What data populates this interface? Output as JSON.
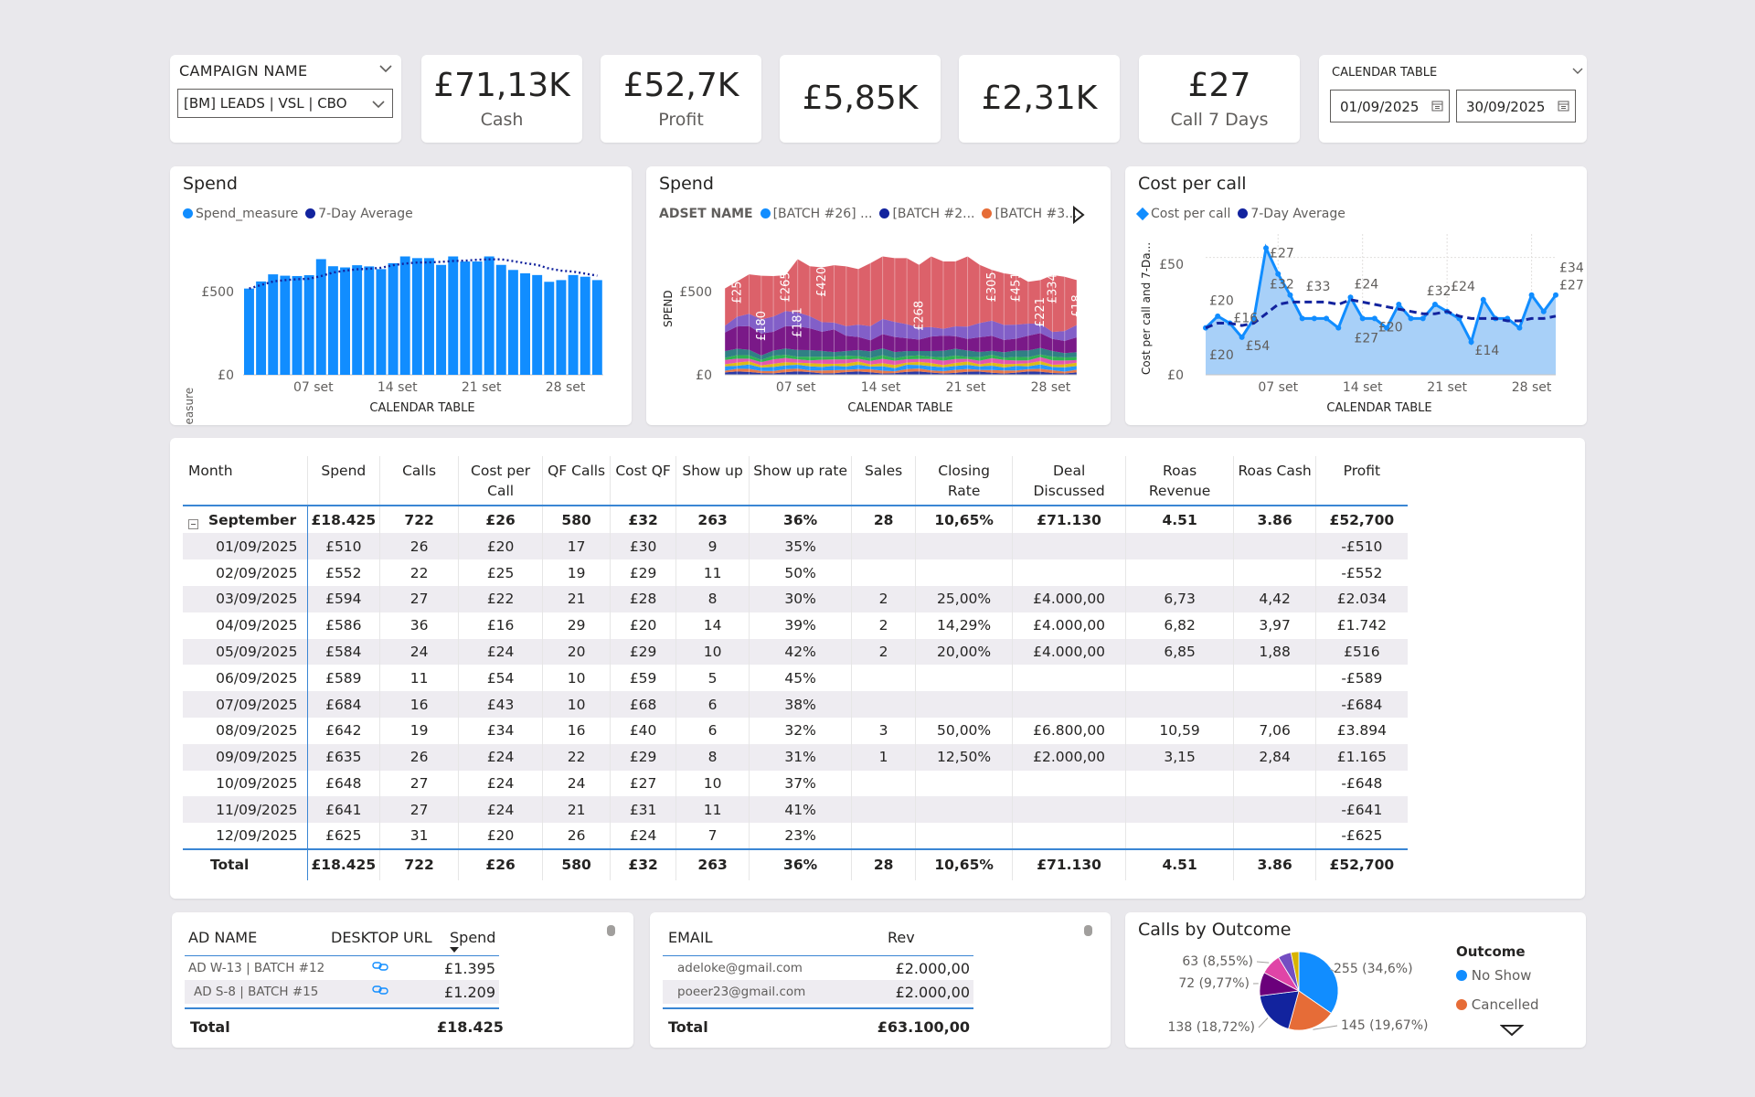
{
  "slicer_campaign": {
    "title": "CAMPAIGN NAME",
    "selected": "[BM] LEADS | VSL | CBO"
  },
  "kpis": [
    {
      "value": "£71,13K",
      "label": "Cash"
    },
    {
      "value": "£52,7K",
      "label": "Profit"
    },
    {
      "value": "£5,85K",
      "label": ""
    },
    {
      "value": "£2,31K",
      "label": ""
    },
    {
      "value": "£27",
      "label": "Call 7 Days"
    }
  ],
  "slicer_date": {
    "title": "CALENDAR TABLE",
    "start": "01/09/2025",
    "end": "30/09/2025"
  },
  "spend_chart": {
    "title": "Spend",
    "legend": [
      "Spend_measure",
      "7-Day Average"
    ],
    "colors": {
      "bar": "#118dff",
      "avg": "#12239e"
    },
    "chart_data": {
      "type": "bar",
      "title": "Spend",
      "xlabel": "CALENDAR TABLE",
      "ylabel": "Spend_measure",
      "ylim": [
        0,
        800
      ],
      "yticks": [
        "£0",
        "£500"
      ],
      "xticks": [
        "07 set",
        "14 set",
        "21 set",
        "28 set"
      ],
      "x": [
        1,
        2,
        3,
        4,
        5,
        6,
        7,
        8,
        9,
        10,
        11,
        12,
        13,
        14,
        15,
        16,
        17,
        18,
        19,
        20,
        21,
        22,
        23,
        24,
        25,
        26,
        27,
        28,
        29,
        30
      ],
      "series": [
        {
          "name": "Spend_measure",
          "values": [
            510,
            552,
            594,
            586,
            584,
            589,
            684,
            642,
            635,
            648,
            641,
            625,
            660,
            700,
            690,
            690,
            650,
            700,
            670,
            670,
            700,
            650,
            620,
            600,
            590,
            550,
            560,
            590,
            580,
            560
          ]
        },
        {
          "name": "7-Day Average",
          "values": [
            510,
            531,
            552,
            560,
            565,
            568,
            584,
            605,
            616,
            624,
            627,
            633,
            648,
            658,
            664,
            665,
            668,
            673,
            675,
            680,
            683,
            683,
            672,
            660,
            650,
            628,
            616,
            610,
            598,
            586
          ]
        }
      ]
    }
  },
  "spend_adset_chart": {
    "title": "Spend",
    "legend_title": "ADSET NAME",
    "legend": [
      "[BATCH #26] ...",
      "[BATCH #2...",
      "[BATCH #3..."
    ],
    "colors": [
      "#118dff",
      "#12239e",
      "#e66c37"
    ],
    "chart_data": {
      "type": "area",
      "title": "Spend",
      "xlabel": "CALENDAR TABLE",
      "ylabel": "SPEND",
      "ylim": [
        0,
        800
      ],
      "yticks": [
        "£0",
        "£500"
      ],
      "xticks": [
        "07 set",
        "14 set",
        "21 set",
        "28 set"
      ],
      "data_labels": [
        "£258",
        "£180",
        "£265",
        "£181",
        "£420",
        "£268",
        "£305",
        "£451",
        "£221",
        "£334",
        "£18"
      ]
    }
  },
  "cost_chart": {
    "title": "Cost per call",
    "legend": [
      "Cost per call",
      "7-Day Average"
    ],
    "colors": {
      "line": "#118dff",
      "avg": "#12239e",
      "area": "#a8d0f8"
    },
    "chart_data": {
      "type": "line",
      "title": "Cost per call",
      "xlabel": "CALENDAR TABLE",
      "ylabel": "Cost per call and 7-Da...",
      "ylim": [
        0,
        60
      ],
      "yticks": [
        "£0",
        "£50"
      ],
      "xticks": [
        "07 set",
        "14 set",
        "21 set",
        "28 set"
      ],
      "x": [
        1,
        2,
        3,
        4,
        5,
        6,
        7,
        8,
        9,
        10,
        11,
        12,
        13,
        14,
        15,
        16,
        17,
        18,
        19,
        20,
        21,
        22,
        23,
        24,
        25,
        26,
        27,
        28,
        29,
        30
      ],
      "series": [
        {
          "name": "Cost per call",
          "values": [
            20,
            25,
            22,
            16,
            24,
            54,
            43,
            34,
            24,
            24,
            24,
            20,
            33,
            24,
            24,
            20,
            30,
            24,
            24,
            30,
            27,
            24,
            14,
            32,
            24,
            24,
            20,
            34,
            27,
            34
          ]
        },
        {
          "name": "7-Day Average",
          "values": [
            20,
            22,
            22,
            21,
            22,
            26,
            30,
            31,
            31,
            31,
            31,
            30,
            32,
            31,
            30,
            29,
            28,
            27,
            26,
            26,
            27,
            25,
            24,
            24,
            24,
            23,
            23,
            24,
            24,
            25
          ]
        }
      ],
      "data_labels": [
        "£20",
        "£20",
        "£16",
        "£54",
        "£27",
        "£32",
        "£33",
        "£24",
        "£20",
        "£27",
        "£32",
        "£24",
        "£14",
        "£34",
        "£27"
      ]
    }
  },
  "matrix": {
    "columns": [
      "Month",
      "Spend",
      "Calls",
      "Cost per Call",
      "QF Calls",
      "Cost QF",
      "Show up",
      "Show up rate",
      "Sales",
      "Closing Rate",
      "Deal Discussed",
      "Roas Revenue",
      "Roas Cash",
      "Profit"
    ],
    "group": [
      "September",
      "£18.425",
      "722",
      "£26",
      "580",
      "£32",
      "263",
      "36%",
      "28",
      "10,65%",
      "£71.130",
      "4.51",
      "3.86",
      "£52,700"
    ],
    "rows": [
      [
        "01/09/2025",
        "£510",
        "26",
        "£20",
        "17",
        "£30",
        "9",
        "35%",
        "",
        "",
        "",
        "",
        "",
        "-£510"
      ],
      [
        "02/09/2025",
        "£552",
        "22",
        "£25",
        "19",
        "£29",
        "11",
        "50%",
        "",
        "",
        "",
        "",
        "",
        "-£552"
      ],
      [
        "03/09/2025",
        "£594",
        "27",
        "£22",
        "21",
        "£28",
        "8",
        "30%",
        "2",
        "25,00%",
        "£4.000,00",
        "6,73",
        "4,42",
        "£2.034"
      ],
      [
        "04/09/2025",
        "£586",
        "36",
        "£16",
        "29",
        "£20",
        "14",
        "39%",
        "2",
        "14,29%",
        "£4.000,00",
        "6,82",
        "3,97",
        "£1.742"
      ],
      [
        "05/09/2025",
        "£584",
        "24",
        "£24",
        "20",
        "£29",
        "10",
        "42%",
        "2",
        "20,00%",
        "£4.000,00",
        "6,85",
        "1,88",
        "£516"
      ],
      [
        "06/09/2025",
        "£589",
        "11",
        "£54",
        "10",
        "£59",
        "5",
        "45%",
        "",
        "",
        "",
        "",
        "",
        "-£589"
      ],
      [
        "07/09/2025",
        "£684",
        "16",
        "£43",
        "10",
        "£68",
        "6",
        "38%",
        "",
        "",
        "",
        "",
        "",
        "-£684"
      ],
      [
        "08/09/2025",
        "£642",
        "19",
        "£34",
        "16",
        "£40",
        "6",
        "32%",
        "3",
        "50,00%",
        "£6.800,00",
        "10,59",
        "7,06",
        "£3.894"
      ],
      [
        "09/09/2025",
        "£635",
        "26",
        "£24",
        "22",
        "£29",
        "8",
        "31%",
        "1",
        "12,50%",
        "£2.000,00",
        "3,15",
        "2,84",
        "£1.165"
      ],
      [
        "10/09/2025",
        "£648",
        "27",
        "£24",
        "24",
        "£27",
        "10",
        "37%",
        "",
        "",
        "",
        "",
        "",
        "-£648"
      ],
      [
        "11/09/2025",
        "£641",
        "27",
        "£24",
        "21",
        "£31",
        "11",
        "41%",
        "",
        "",
        "",
        "",
        "",
        "-£641"
      ],
      [
        "12/09/2025",
        "£625",
        "31",
        "£20",
        "26",
        "£24",
        "7",
        "23%",
        "",
        "",
        "",
        "",
        "",
        "-£625"
      ]
    ],
    "total": [
      "Total",
      "£18.425",
      "722",
      "£26",
      "580",
      "£32",
      "263",
      "36%",
      "28",
      "10,65%",
      "£71.130",
      "4.51",
      "3.86",
      "£52,700"
    ]
  },
  "ads_table": {
    "columns": [
      "AD NAME",
      "DESKTOP URL",
      "Spend"
    ],
    "rows": [
      {
        "name": "AD W-13 | BATCH #12",
        "spend": "£1.395"
      },
      {
        "name": "AD S-8 | BATCH #15",
        "spend": "£1.209"
      }
    ],
    "total_label": "Total",
    "total": "£18.425"
  },
  "email_table": {
    "columns": [
      "EMAIL",
      "Rev"
    ],
    "rows": [
      {
        "email": "adeloke@gmail.com",
        "rev": "£2.000,00"
      },
      {
        "email": "poeer23@gmail.com",
        "rev": "£2.000,00"
      }
    ],
    "total_label": "Total",
    "total": "£63.100,00"
  },
  "calls_outcome": {
    "title": "Calls by Outcome",
    "legend_title": "Outcome",
    "legend": [
      "No Show",
      "Cancelled"
    ],
    "colors": [
      "#118dff",
      "#e66c37",
      "#12239e",
      "#6b007b",
      "#e044a7",
      "#744ec2",
      "#d9b300"
    ],
    "chart_data": {
      "type": "pie",
      "title": "Calls by Outcome",
      "slices": [
        {
          "label": "No Show",
          "value": 255,
          "text": "255 (34,6%)"
        },
        {
          "label": "Cancelled",
          "value": 145,
          "text": "145 (19,67%)"
        },
        {
          "label": "",
          "value": 138,
          "text": "138 (18,72%)"
        },
        {
          "label": "",
          "value": 72,
          "text": "72 (9,77%)"
        },
        {
          "label": "",
          "value": 63,
          "text": "63 (8,55%)"
        },
        {
          "label": "",
          "value": 40,
          "text": ""
        },
        {
          "label": "",
          "value": 24,
          "text": ""
        }
      ]
    }
  }
}
